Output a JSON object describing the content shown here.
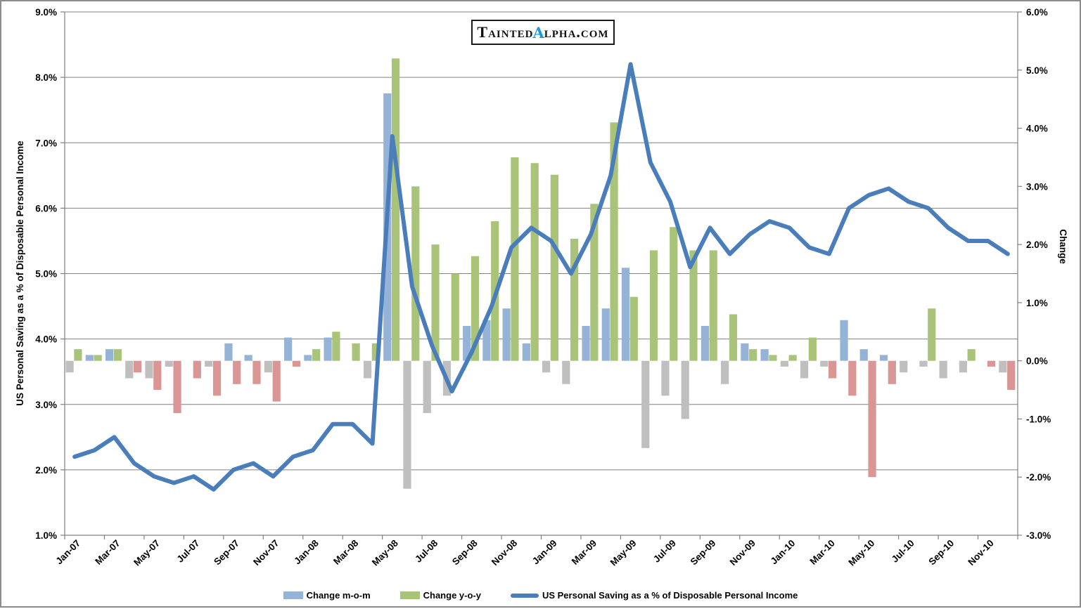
{
  "logo": {
    "before_alpha": "Tainted",
    "alpha": "α",
    "after_alpha": "lpha.com",
    "alpha_color": "#2095D5"
  },
  "chart_data": {
    "type": "combo-bar-line",
    "months": [
      "Jan-07",
      "Feb-07",
      "Mar-07",
      "Apr-07",
      "May-07",
      "Jun-07",
      "Jul-07",
      "Aug-07",
      "Sep-07",
      "Oct-07",
      "Nov-07",
      "Dec-07",
      "Jan-08",
      "Feb-08",
      "Mar-08",
      "Apr-08",
      "May-08",
      "Jun-08",
      "Jul-08",
      "Aug-08",
      "Sep-08",
      "Oct-08",
      "Nov-08",
      "Dec-08",
      "Jan-09",
      "Feb-09",
      "Mar-09",
      "Apr-09",
      "May-09",
      "Jun-09",
      "Jul-09",
      "Aug-09",
      "Sep-09",
      "Oct-09",
      "Nov-09",
      "Dec-09",
      "Jan-10",
      "Feb-10",
      "Mar-10",
      "Apr-10",
      "May-10",
      "Jun-10",
      "Jul-10",
      "Aug-10",
      "Sep-10",
      "Oct-10",
      "Nov-10",
      "Dec-10"
    ],
    "x_tick_every": 2,
    "series": [
      {
        "name": "Change m-o-m",
        "type": "bar",
        "axis": "right",
        "color_positive": "#95B3D7",
        "color_negative": "#BFBFBF",
        "values": [
          -0.2,
          0.1,
          0.2,
          -0.3,
          -0.3,
          -0.1,
          0,
          -0.1,
          0.3,
          0.1,
          -0.2,
          0.4,
          0.1,
          0.4,
          0,
          -0.3,
          4.6,
          -2.2,
          -0.9,
          -0.6,
          0.6,
          0.7,
          0.9,
          0.3,
          -0.2,
          -0.4,
          0.6,
          0.9,
          1.6,
          -1.5,
          -0.6,
          -1.0,
          0.6,
          -0.4,
          0.3,
          0.2,
          -0.1,
          -0.3,
          -0.1,
          0.7,
          0.2,
          0.1,
          -0.2,
          -0.1,
          -0.3,
          -0.2,
          0,
          -0.2
        ]
      },
      {
        "name": "Change y-o-y",
        "type": "bar",
        "axis": "right",
        "color_positive": "#A9C479",
        "color_negative": "#D99694",
        "values": [
          0.2,
          0.1,
          0.2,
          -0.2,
          -0.5,
          -0.9,
          -0.3,
          -0.6,
          -0.4,
          -0.4,
          -0.7,
          -0.1,
          0.2,
          0.5,
          0.3,
          0.3,
          5.2,
          3.0,
          2.0,
          1.5,
          1.8,
          2.4,
          3.5,
          3.4,
          3.2,
          2.1,
          2.7,
          4.1,
          1.1,
          1.9,
          2.3,
          1.9,
          1.9,
          0.8,
          0.2,
          0.1,
          0.1,
          0.4,
          -0.3,
          -0.6,
          -2.0,
          -0.4,
          0,
          0.9,
          0,
          0.2,
          -0.1,
          -0.5
        ]
      },
      {
        "name": "US Personal Saving as a % of Disposable Personal Income",
        "type": "line",
        "axis": "left",
        "color": "#4A7EBB",
        "values": [
          2.2,
          2.3,
          2.5,
          2.1,
          1.9,
          1.8,
          1.9,
          1.7,
          2.0,
          2.1,
          1.9,
          2.2,
          2.3,
          2.7,
          2.7,
          2.4,
          7.1,
          4.8,
          3.9,
          3.2,
          3.8,
          4.5,
          5.4,
          5.7,
          5.5,
          5.0,
          5.6,
          6.5,
          8.2,
          6.7,
          6.1,
          5.1,
          5.7,
          5.3,
          5.6,
          5.8,
          5.7,
          5.4,
          5.3,
          6.0,
          6.2,
          6.3,
          6.1,
          6.0,
          5.7,
          5.5,
          5.5,
          5.3
        ]
      }
    ],
    "left_axis": {
      "title": "US Personal Saving as a % of Disposable Personal Income",
      "min": 1.0,
      "max": 9.0,
      "step": 1.0,
      "labels": [
        "9.0%",
        "8.0%",
        "7.0%",
        "6.0%",
        "5.0%",
        "4.0%",
        "3.0%",
        "2.0%",
        "1.0%"
      ]
    },
    "right_axis": {
      "title": "Change",
      "min": -3.0,
      "max": 6.0,
      "step": 1.0,
      "labels": [
        "6.0%",
        "5.0%",
        "4.0%",
        "3.0%",
        "2.0%",
        "1.0%",
        "0.0%",
        "-1.0%",
        "-2.0%",
        "-3.0%"
      ]
    },
    "grid_color": "#808080",
    "axis_text_color": "#000000",
    "background": "#FFFFFF"
  },
  "legend": {
    "items": [
      {
        "label": "Change m-o-m",
        "swatch_color": "#95B3D7",
        "swatch_type": "bar"
      },
      {
        "label": "Change y-o-y",
        "swatch_color": "#A9C479",
        "swatch_type": "bar"
      },
      {
        "label": "US Personal Saving as a % of Disposable Personal Income",
        "swatch_color": "#4A7EBB",
        "swatch_type": "line"
      }
    ]
  }
}
